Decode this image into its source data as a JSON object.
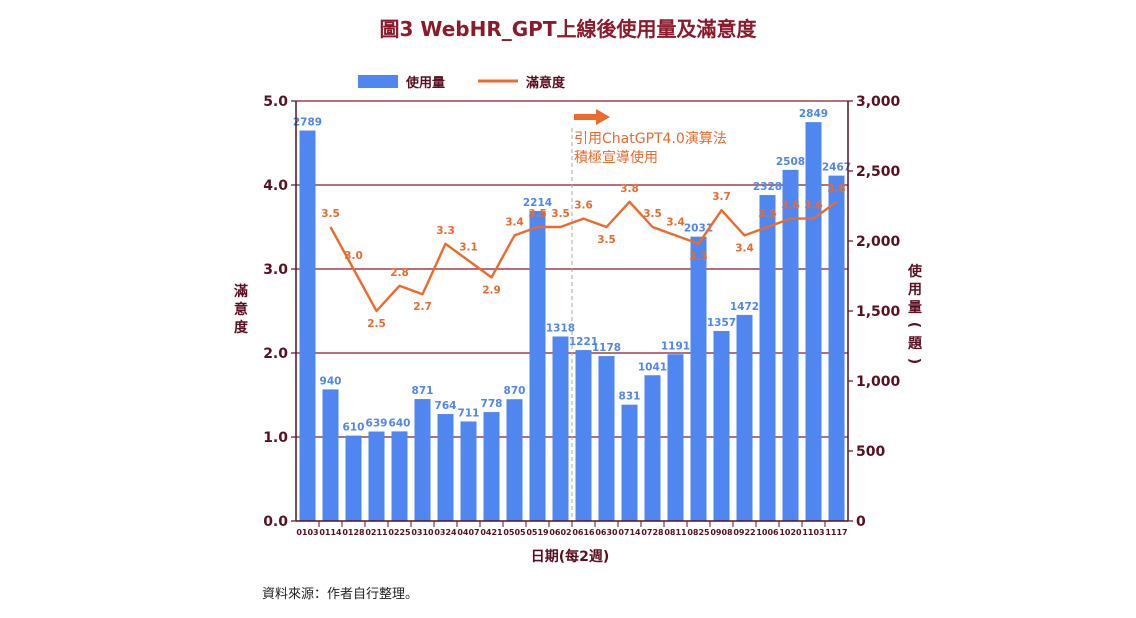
{
  "chart_data": {
    "type": "bar",
    "title": "圖3 WebHR_GPT上線後使用量及滿意度",
    "xlabel": "日期(每2週)",
    "ylabel_left": "滿意度",
    "ylabel_right": "使用量(題)",
    "categories": [
      "0103",
      "0114",
      "0128",
      "0211",
      "0225",
      "0310",
      "0324",
      "0407",
      "0421",
      "0505",
      "0519",
      "0602",
      "0616",
      "0630",
      "0714",
      "0728",
      "0811",
      "0825",
      "0908",
      "0922",
      "1006",
      "1020",
      "1103",
      "1117"
    ],
    "left_axis": {
      "min": 0,
      "max": 5,
      "ticks": [
        "0.0",
        "1.0",
        "2.0",
        "3.0",
        "4.0",
        "5.0"
      ]
    },
    "right_axis": {
      "min": 0,
      "max": 3000,
      "ticks": [
        "0",
        "500",
        "1,000",
        "1,500",
        "2,000",
        "2,500",
        "3,000"
      ]
    },
    "series": [
      {
        "name": "使用量",
        "type": "bar",
        "axis": "right",
        "color": "#4f86f0",
        "values": [
          2789,
          940,
          610,
          639,
          640,
          871,
          764,
          711,
          778,
          870,
          2214,
          1318,
          1221,
          1178,
          831,
          1041,
          1191,
          2031,
          1357,
          1472,
          2328,
          2508,
          2849,
          2467
        ]
      },
      {
        "name": "滿意度",
        "type": "line",
        "axis": "left",
        "color": "#ec6a2c",
        "values": [
          null,
          3.5,
          3.0,
          2.5,
          2.8,
          2.7,
          3.3,
          3.1,
          2.9,
          3.4,
          3.5,
          3.5,
          3.6,
          3.5,
          3.8,
          3.5,
          3.4,
          3.3,
          3.7,
          3.4,
          3.5,
          3.6,
          3.6,
          3.8
        ],
        "value_labels": [
          "",
          "3.5",
          "3.0",
          "2.5",
          "2.8",
          "2.7",
          "3.3",
          "3.1",
          "2.9",
          "3.4",
          "3.5",
          "3.5",
          "3.6",
          "3.5",
          "3.8",
          "3.5",
          "3.4",
          "3.3",
          "3.7",
          "3.4",
          "3.5",
          "3.6",
          "3.6",
          "3.8"
        ]
      }
    ],
    "annotation": {
      "line1": "引用ChatGPT4.0演算法",
      "line2": "積極宣導使用",
      "after_category": "0602"
    },
    "grid": true,
    "legend": "top"
  },
  "source": "資料來源：作者自行整理。"
}
